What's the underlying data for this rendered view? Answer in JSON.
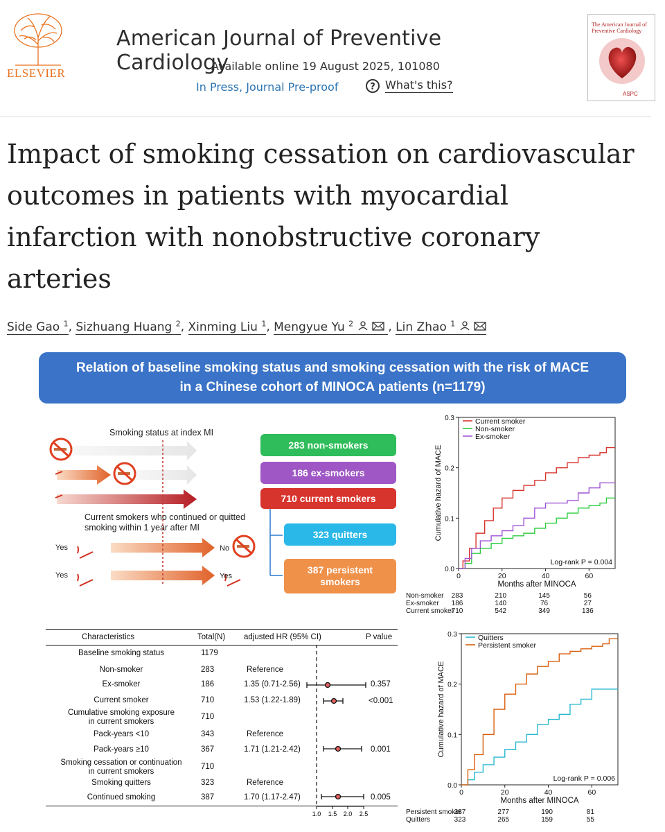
{
  "header": {
    "journal_name": "American Journal of Preventive Cardiology",
    "availability": "Available online 19 August 2025, 101080",
    "status_link": "In Press, Journal Pre-proof",
    "whats_this": "What's this?",
    "publisher": "ELSEVIER",
    "cover_title": "The American Journal of Preventive Cardiology",
    "cover_badge": "ASPC"
  },
  "article": {
    "title": "Impact of smoking cessation on cardiovascular outcomes in patients with myocardial infarction with nonobstructive coronary arteries",
    "authors": [
      {
        "name": "Side Gao",
        "aff": "1"
      },
      {
        "name": "Sizhuang Huang",
        "aff": "2"
      },
      {
        "name": "Xinming Liu",
        "aff": "1"
      },
      {
        "name": "Mengyue Yu",
        "aff": "2"
      },
      {
        "name": "Lin Zhao",
        "aff": "1"
      }
    ]
  },
  "graphical_abstract": {
    "banner_line1": "Relation of baseline smoking status and smoking cessation with the risk of MACE",
    "banner_line2": "in a Chinese cohort of MINOCA patients (n=1179)",
    "diagram": {
      "status_label": "Smoking status at index MI",
      "continued_label_1": "Current smokers who continued or quitted",
      "continued_label_2": "smoking within 1 year after MI",
      "yes": "Yes",
      "no": "No",
      "boxes": {
        "non_smokers": "283 non-smokers",
        "ex_smokers": "186 ex-smokers",
        "current_smokers": "710 current smokers",
        "quitters": "323 quitters",
        "persistent_1": "387 persistent",
        "persistent_2": "smokers"
      }
    },
    "table": {
      "headers": {
        "characteristics": "Characteristics",
        "total": "Total(N)",
        "hr": "adjusted HR (95% CI)",
        "p": "P value"
      },
      "rows": [
        {
          "label": "Baseline smoking status",
          "n": "1179",
          "hr": "",
          "p": ""
        },
        {
          "label": "Non-smoker",
          "n": "283",
          "hr": "Reference",
          "p": ""
        },
        {
          "label": "Ex-smoker",
          "n": "186",
          "hr": "1.35 (0.71-2.56)",
          "p": "0.357"
        },
        {
          "label": "Current smoker",
          "n": "710",
          "hr": "1.53 (1.22-1.89)",
          "p": "<0.001"
        },
        {
          "label": "Cumulative smoking exposure",
          "label2": "in current smokers",
          "n": "710",
          "hr": "",
          "p": ""
        },
        {
          "label": "Pack-years <10",
          "n": "343",
          "hr": "Reference",
          "p": ""
        },
        {
          "label": "Pack-years ≥10",
          "n": "367",
          "hr": "1.71 (1.21-2.42)",
          "p": "0.001"
        },
        {
          "label": "Smoking cessation or continuation",
          "label2": "in current smokers",
          "n": "710",
          "hr": "",
          "p": ""
        },
        {
          "label": "Smoking quitters",
          "n": "323",
          "hr": "Reference",
          "p": ""
        },
        {
          "label": "Continued smoking",
          "n": "387",
          "hr": "1.70 (1.17-2.47)",
          "p": "0.005"
        }
      ],
      "forest_axis_ticks": [
        "1.0",
        "1.5",
        "2.0",
        "2.5"
      ]
    }
  },
  "colors": {
    "banner": "#3a73c7",
    "green": "#2ebd5a",
    "purple": "#9e57c4",
    "red": "#d8342e",
    "cyan": "#2ab8e8",
    "orange": "#f0914a",
    "link": "#2c74b3",
    "elsevier": "#e9711c"
  },
  "chart_data": [
    {
      "type": "line",
      "title": "",
      "xlabel": "Months after MINOCA",
      "ylabel": "Cumulative hazard of MACE",
      "xlim": [
        0,
        72
      ],
      "ylim": [
        0,
        0.3
      ],
      "x_ticks": [
        "0",
        "20",
        "40",
        "60"
      ],
      "y_ticks": [
        "0.0",
        "0.1",
        "0.2",
        "0.3"
      ],
      "annotation": "Log-rank  P = 0.004",
      "series": [
        {
          "name": "Current smoker",
          "color": "#d8342e",
          "x": [
            0,
            2,
            5,
            8,
            12,
            16,
            20,
            25,
            30,
            35,
            40,
            45,
            50,
            55,
            60,
            65,
            68,
            72
          ],
          "y": [
            0,
            0.015,
            0.04,
            0.07,
            0.095,
            0.12,
            0.14,
            0.155,
            0.165,
            0.175,
            0.19,
            0.2,
            0.21,
            0.22,
            0.225,
            0.23,
            0.24,
            0.24
          ]
        },
        {
          "name": "Non-smoker",
          "color": "#2ecc40",
          "x": [
            0,
            3,
            6,
            10,
            15,
            20,
            25,
            30,
            35,
            40,
            45,
            50,
            55,
            60,
            65,
            68,
            72
          ],
          "y": [
            0,
            0.01,
            0.03,
            0.04,
            0.05,
            0.06,
            0.065,
            0.07,
            0.08,
            0.09,
            0.1,
            0.11,
            0.12,
            0.125,
            0.13,
            0.14,
            0.14
          ]
        },
        {
          "name": "Ex-smoker",
          "color": "#a056d6",
          "x": [
            0,
            3,
            6,
            10,
            15,
            20,
            25,
            30,
            35,
            40,
            45,
            50,
            55,
            60,
            65,
            72
          ],
          "y": [
            0,
            0.02,
            0.04,
            0.055,
            0.065,
            0.075,
            0.085,
            0.1,
            0.12,
            0.13,
            0.13,
            0.135,
            0.15,
            0.16,
            0.17,
            0.17
          ]
        }
      ],
      "risk_table": {
        "rows": [
          {
            "label": "Non-smoker",
            "values": [
              "283",
              "210",
              "145",
              "56"
            ]
          },
          {
            "label": "Ex-smoker",
            "values": [
              "186",
              "140",
              "76",
              "27"
            ]
          },
          {
            "label": "Current smoker",
            "values": [
              "710",
              "542",
              "349",
              "136"
            ]
          }
        ]
      }
    },
    {
      "type": "line",
      "title": "",
      "xlabel": "Months after MINOCA",
      "ylabel": "Cumulative hazard of MACE",
      "xlim": [
        0,
        72
      ],
      "ylim": [
        0,
        0.3
      ],
      "x_ticks": [
        "0",
        "20",
        "40",
        "60"
      ],
      "y_ticks": [
        "0.0",
        "0.1",
        "0.2",
        "0.3"
      ],
      "annotation": "Log-rank  P = 0.006",
      "series": [
        {
          "name": "Quitters",
          "color": "#2ab8d0",
          "x": [
            0,
            3,
            6,
            10,
            15,
            20,
            25,
            30,
            35,
            40,
            45,
            50,
            55,
            60,
            65,
            72
          ],
          "y": [
            0,
            0.01,
            0.025,
            0.04,
            0.055,
            0.07,
            0.085,
            0.1,
            0.12,
            0.13,
            0.14,
            0.16,
            0.17,
            0.19,
            0.19,
            0.19
          ]
        },
        {
          "name": "Persistent smoker",
          "color": "#d95f0e",
          "x": [
            0,
            3,
            6,
            10,
            15,
            20,
            25,
            30,
            35,
            40,
            45,
            50,
            55,
            60,
            65,
            68,
            72
          ],
          "y": [
            0,
            0.03,
            0.06,
            0.1,
            0.15,
            0.18,
            0.2,
            0.22,
            0.235,
            0.245,
            0.26,
            0.265,
            0.27,
            0.275,
            0.28,
            0.29,
            0.29
          ]
        }
      ],
      "risk_table": {
        "rows": [
          {
            "label": "Persistent smoker",
            "values": [
              "387",
              "277",
              "190",
              "81"
            ]
          },
          {
            "label": "Quitters",
            "values": [
              "323",
              "265",
              "159",
              "55"
            ]
          }
        ]
      }
    }
  ]
}
